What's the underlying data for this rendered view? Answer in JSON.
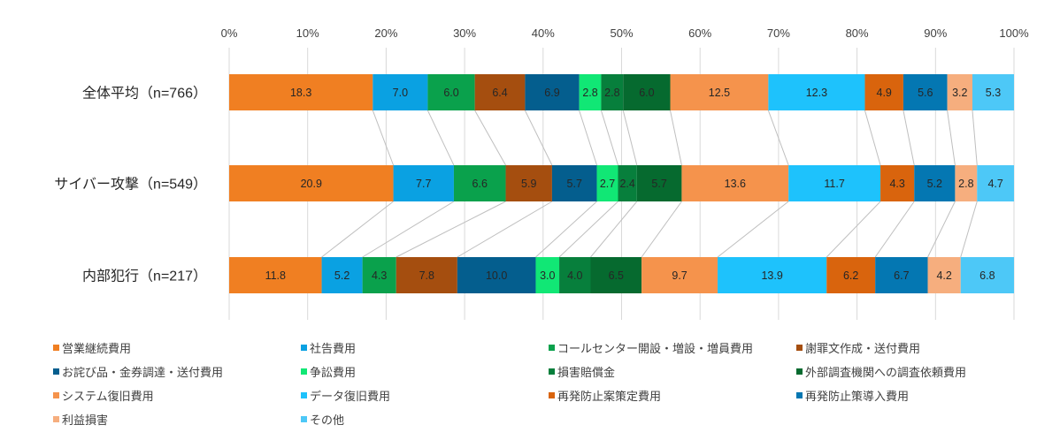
{
  "chart_data": {
    "type": "bar",
    "orientation": "horizontal",
    "stacked": "percent",
    "title": "",
    "xlabel": "",
    "ylabel": "",
    "xlim": [
      0,
      100
    ],
    "x_ticks": [
      "0%",
      "10%",
      "20%",
      "30%",
      "40%",
      "50%",
      "60%",
      "70%",
      "80%",
      "90%",
      "100%"
    ],
    "grid": true,
    "series_lines": true,
    "legend_position": "bottom",
    "categories": [
      "全体平均（n=766）",
      "サイバー攻撃（n=549）",
      "内部犯行（n=217）"
    ],
    "series": [
      {
        "name": "営業継続費用",
        "color": "#F07F22",
        "values": [
          18.3,
          20.9,
          11.8
        ]
      },
      {
        "name": "社告費用",
        "color": "#0AA1E2",
        "values": [
          7.0,
          7.7,
          5.2
        ]
      },
      {
        "name": "コールセンター開設・増設・増員費用",
        "color": "#0AA14C",
        "values": [
          6.0,
          6.6,
          4.3
        ]
      },
      {
        "name": "謝罪文作成・送付費用",
        "color": "#A54E0F",
        "values": [
          6.4,
          5.9,
          7.8
        ]
      },
      {
        "name": "お詫び品・金券調達・送付費用",
        "color": "#045E8E",
        "values": [
          6.9,
          5.7,
          10.0
        ]
      },
      {
        "name": "争訟費用",
        "color": "#11E775",
        "values": [
          2.8,
          2.7,
          3.0
        ]
      },
      {
        "name": "損害賠償金",
        "color": "#077F3C",
        "values": [
          2.8,
          2.4,
          4.0
        ]
      },
      {
        "name": "外部調査機関への調査依頼費用",
        "color": "#066A2F",
        "values": [
          6.0,
          5.7,
          6.5
        ]
      },
      {
        "name": "システム復旧費用",
        "color": "#F5934C",
        "values": [
          12.5,
          13.6,
          9.7
        ]
      },
      {
        "name": "データ復旧費用",
        "color": "#1EC2FC",
        "values": [
          12.3,
          11.7,
          13.9
        ]
      },
      {
        "name": "再発防止案策定費用",
        "color": "#D9640D",
        "values": [
          4.9,
          4.3,
          6.2
        ]
      },
      {
        "name": "再発防止策導入費用",
        "color": "#0477B2",
        "values": [
          5.6,
          5.2,
          6.7
        ]
      },
      {
        "name": "利益損害",
        "color": "#F6AE7E",
        "values": [
          3.2,
          2.8,
          4.2
        ]
      },
      {
        "name": "その他",
        "color": "#4DC8F7",
        "values": [
          5.3,
          4.7,
          6.8
        ]
      }
    ]
  }
}
